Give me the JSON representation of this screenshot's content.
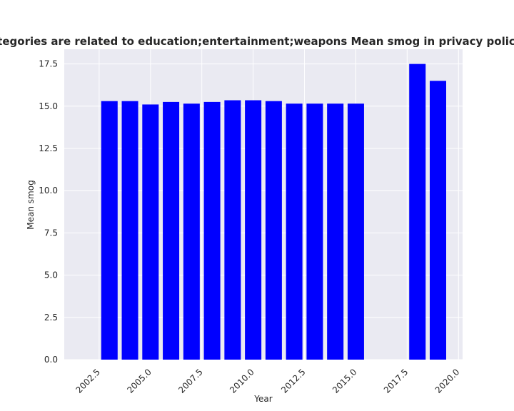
{
  "chart_data": {
    "type": "bar",
    "title": "When categories are related to education;entertainment;weapons Mean smog in privacy policies by Year",
    "xlabel": "Year",
    "ylabel": "Mean smog",
    "x": [
      2003,
      2004,
      2005,
      2006,
      2007,
      2008,
      2009,
      2010,
      2011,
      2012,
      2013,
      2014,
      2015,
      2018,
      2019
    ],
    "values": [
      15.3,
      15.3,
      15.1,
      15.25,
      15.15,
      15.25,
      15.35,
      15.35,
      15.3,
      15.15,
      15.15,
      15.15,
      15.15,
      17.5,
      16.5
    ],
    "xlim": [
      2000.8,
      2020.2
    ],
    "ylim": [
      0,
      18.37
    ],
    "xticks": [
      2002.5,
      2005.0,
      2007.5,
      2010.0,
      2012.5,
      2015.0,
      2017.5,
      2020.0
    ],
    "xtick_labels": [
      "2002.5",
      "2005.0",
      "2007.5",
      "2010.0",
      "2012.5",
      "2015.0",
      "2017.5",
      "2020.0"
    ],
    "yticks": [
      0,
      2.5,
      5,
      7.5,
      10,
      12.5,
      15,
      17.5
    ],
    "ytick_labels": [
      "0.0",
      "2.5",
      "5.0",
      "7.5",
      "10.0",
      "12.5",
      "15.0",
      "17.5"
    ],
    "bar_color": "#0000ff",
    "background_color": "#eaeaf2",
    "grid_color": "#ffffff",
    "grid": true,
    "legend": false
  }
}
